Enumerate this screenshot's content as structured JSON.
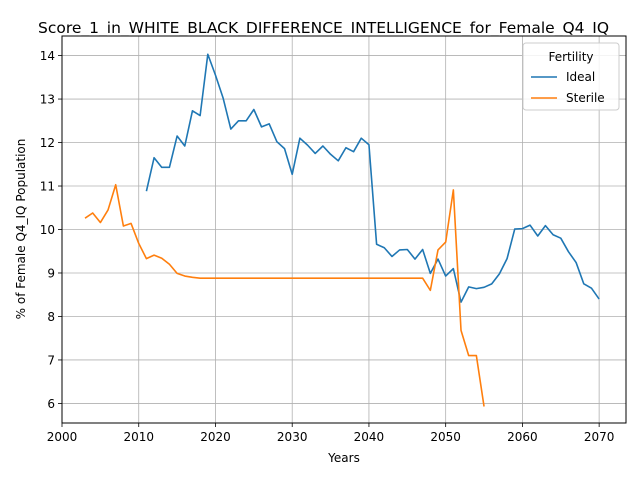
{
  "chart_data": {
    "type": "line",
    "title": "Score_1_in_WHITE_BLACK_DIFFERENCE_INTELLIGENCE_for_Female_Q4_IQ",
    "xlabel": "Years",
    "ylabel": "% of Female Q4_IQ Population",
    "xlim": [
      2000,
      2073.5
    ],
    "ylim": [
      5.55,
      14.45
    ],
    "xticks": [
      2000,
      2010,
      2020,
      2030,
      2040,
      2050,
      2060,
      2070
    ],
    "yticks": [
      6,
      7,
      8,
      9,
      10,
      11,
      12,
      13,
      14
    ],
    "grid": true,
    "legend": {
      "title": "Fertility",
      "placement": "top-right"
    },
    "series": [
      {
        "name": "Ideal",
        "color": "#1f77b4",
        "points": [
          [
            2011,
            10.88
          ],
          [
            2012,
            11.65
          ],
          [
            2013,
            11.43
          ],
          [
            2014,
            11.43
          ],
          [
            2015,
            12.15
          ],
          [
            2016,
            11.92
          ],
          [
            2017,
            12.73
          ],
          [
            2018,
            12.62
          ],
          [
            2019,
            14.03
          ],
          [
            2020,
            13.55
          ],
          [
            2021,
            13.02
          ],
          [
            2022,
            12.31
          ],
          [
            2023,
            12.5
          ],
          [
            2024,
            12.5
          ],
          [
            2025,
            12.76
          ],
          [
            2026,
            12.36
          ],
          [
            2027,
            12.43
          ],
          [
            2028,
            12.02
          ],
          [
            2029,
            11.86
          ],
          [
            2030,
            11.27
          ],
          [
            2031,
            12.1
          ],
          [
            2032,
            11.94
          ],
          [
            2033,
            11.75
          ],
          [
            2034,
            11.92
          ],
          [
            2035,
            11.73
          ],
          [
            2036,
            11.58
          ],
          [
            2037,
            11.88
          ],
          [
            2038,
            11.79
          ],
          [
            2039,
            12.1
          ],
          [
            2040,
            11.95
          ],
          [
            2041,
            9.66
          ],
          [
            2042,
            9.58
          ],
          [
            2043,
            9.38
          ],
          [
            2044,
            9.53
          ],
          [
            2045,
            9.54
          ],
          [
            2046,
            9.32
          ],
          [
            2047,
            9.54
          ],
          [
            2048,
            8.99
          ],
          [
            2049,
            9.32
          ],
          [
            2050,
            8.93
          ],
          [
            2051,
            9.1
          ],
          [
            2052,
            8.33
          ],
          [
            2053,
            8.68
          ],
          [
            2054,
            8.64
          ],
          [
            2055,
            8.67
          ],
          [
            2056,
            8.75
          ],
          [
            2057,
            8.98
          ],
          [
            2058,
            9.33
          ],
          [
            2059,
            10.01
          ],
          [
            2060,
            10.02
          ],
          [
            2061,
            10.1
          ],
          [
            2062,
            9.85
          ],
          [
            2063,
            10.09
          ],
          [
            2064,
            9.88
          ],
          [
            2065,
            9.8
          ],
          [
            2066,
            9.49
          ],
          [
            2067,
            9.24
          ],
          [
            2068,
            8.75
          ],
          [
            2069,
            8.65
          ],
          [
            2070,
            8.4
          ]
        ]
      },
      {
        "name": "Sterile",
        "color": "#ff7f0e",
        "points": [
          [
            2003,
            10.26
          ],
          [
            2004,
            10.38
          ],
          [
            2005,
            10.16
          ],
          [
            2006,
            10.45
          ],
          [
            2007,
            11.03
          ],
          [
            2008,
            10.08
          ],
          [
            2009,
            10.14
          ],
          [
            2010,
            9.68
          ],
          [
            2011,
            9.33
          ],
          [
            2012,
            9.41
          ],
          [
            2013,
            9.34
          ],
          [
            2014,
            9.2
          ],
          [
            2015,
            8.99
          ],
          [
            2016,
            8.93
          ],
          [
            2017,
            8.9
          ],
          [
            2018,
            8.88
          ],
          [
            2019,
            8.88
          ],
          [
            2020,
            8.88
          ],
          [
            2025,
            8.88
          ],
          [
            2030,
            8.88
          ],
          [
            2035,
            8.88
          ],
          [
            2040,
            8.88
          ],
          [
            2045,
            8.88
          ],
          [
            2047,
            8.88
          ],
          [
            2048,
            8.6
          ],
          [
            2049,
            9.53
          ],
          [
            2050,
            9.71
          ],
          [
            2051,
            10.91
          ],
          [
            2052,
            7.68
          ],
          [
            2053,
            7.1
          ],
          [
            2054,
            7.1
          ],
          [
            2055,
            5.93
          ]
        ]
      }
    ]
  }
}
